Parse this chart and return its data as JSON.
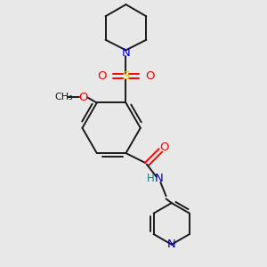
{
  "background_color": "#e8e8e8",
  "bond_color": "#1a1a1a",
  "atom_colors": {
    "N": "#0000cd",
    "O": "#ff0000",
    "S": "#cccc00",
    "H": "#008080",
    "C": "#1a1a1a"
  }
}
